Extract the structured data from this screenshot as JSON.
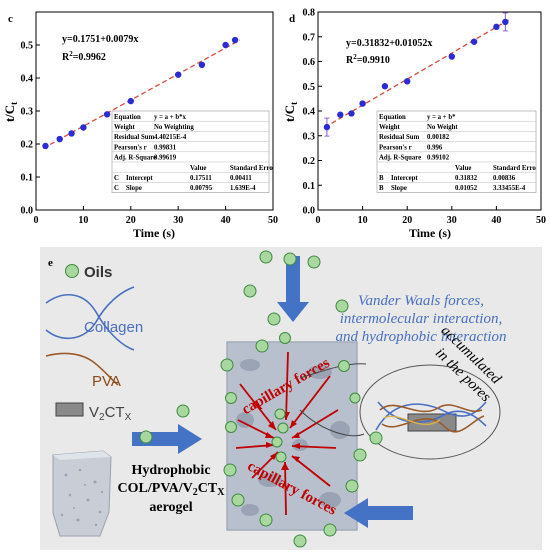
{
  "chart_data": [
    {
      "type": "scatter",
      "panel": "c",
      "title": "",
      "xlabel": "Time (s)",
      "ylabel": "t/Ct",
      "xlim": [
        0,
        50
      ],
      "ylim": [
        0,
        0.6
      ],
      "xticks": [
        "0",
        "10",
        "20",
        "30",
        "40",
        "50"
      ],
      "yticks": [
        "0.0",
        "0.1",
        "0.2",
        "0.3",
        "0.4",
        "0.5"
      ],
      "grid": false,
      "fit_line": {
        "intercept": 0.1751,
        "slope": 0.0079,
        "style": "dashed",
        "color": "#d84b3a"
      },
      "equation": "y=0.1751+0.0079x",
      "r2_prefix": "R",
      "r2_sup": "2",
      "r2_value": "=0.9962",
      "x": [
        2,
        5,
        7.5,
        10,
        15,
        20,
        30,
        35,
        40,
        42
      ],
      "y": [
        0.194,
        0.215,
        0.232,
        0.25,
        0.29,
        0.33,
        0.41,
        0.44,
        0.5,
        0.515
      ],
      "error_bars_on_points": [],
      "marker_color": "#2b2bd4",
      "stats_table": {
        "rows": [
          [
            "Equation",
            "y = a + b*x"
          ],
          [
            "Weight",
            "No Weighting"
          ],
          [
            "Residual Sum",
            "4.40215E-4"
          ],
          [
            "Pearson's r",
            "0.99831"
          ],
          [
            "Adj. R-Square",
            "0.99619"
          ]
        ],
        "coef_header": [
          "",
          "",
          "Value",
          "Standard Erro"
        ],
        "coef_rows": [
          [
            "C",
            "Intercept",
            "0.17511",
            "0.00411"
          ],
          [
            "C",
            "Slope",
            "0.00795",
            "1.639E-4"
          ]
        ]
      }
    },
    {
      "type": "scatter",
      "panel": "d",
      "title": "",
      "xlabel": "Time (s)",
      "ylabel": "t/Ct",
      "xlim": [
        0,
        50
      ],
      "ylim": [
        0,
        0.8
      ],
      "xticks": [
        "0",
        "10",
        "20",
        "30",
        "40",
        "50"
      ],
      "yticks": [
        "0.0",
        "0.1",
        "0.2",
        "0.3",
        "0.4",
        "0.5",
        "0.6",
        "0.7",
        "0.8"
      ],
      "grid": false,
      "fit_line": {
        "intercept": 0.31832,
        "slope": 0.01052,
        "style": "dashed",
        "color": "#d84b3a"
      },
      "equation": "y=0.31832+0.01052x",
      "r2_prefix": "R",
      "r2_sup": "2",
      "r2_value": "=0.9910",
      "x": [
        2,
        5,
        7.5,
        10,
        15,
        20,
        30,
        35,
        40,
        42
      ],
      "y": [
        0.335,
        0.385,
        0.39,
        0.43,
        0.5,
        0.52,
        0.62,
        0.68,
        0.74,
        0.76
      ],
      "error_bars_on_points": [
        0,
        9
      ],
      "marker_color": "#2b2bd4",
      "stats_table": {
        "rows": [
          [
            "Equation",
            "y = a + b*"
          ],
          [
            "Weight",
            "No Weight"
          ],
          [
            "Residual Sum",
            "0.00182"
          ],
          [
            "Pearson's r",
            "0.996"
          ],
          [
            "Adj. R-Square",
            "0.99102"
          ]
        ],
        "coef_header": [
          "",
          "",
          "Value",
          "Standard Erro"
        ],
        "coef_rows": [
          [
            "B",
            "Intercept",
            "0.31832",
            "0.00836"
          ],
          [
            "B",
            "Slope",
            "0.01052",
            "3.33455E-4"
          ]
        ]
      }
    }
  ],
  "panel_e": {
    "label": "e",
    "legend": {
      "oils": "Oils",
      "collagen": "Collagen",
      "pva": "PVA",
      "mxene_main": "V",
      "mxene_sub2": "2",
      "mxene_ct": "CT",
      "mxene_subx": "X"
    },
    "forces_text": [
      "Vander Waals forces,",
      "intermolecular interaction,",
      "and hydrophobic interaction"
    ],
    "capillary_label": "capillary forces",
    "accumulated_text": [
      "accumulated",
      "in the pores"
    ],
    "aerogel_caption": {
      "line1": "Hydrophobic",
      "line2_main": "COL/PVA/V",
      "line2_sub2": "2",
      "line2_ct": "CT",
      "line2_subx": "X",
      "line3": "aerogel"
    },
    "colors": {
      "oil_fill": "#a8d8a0",
      "oil_stroke": "#3f8a3f",
      "collagen": "#4a6fc0",
      "pva": "#9a5a2a",
      "arrow_blue": "#4472c4",
      "arrow_red": "#c00000",
      "forces_text": "#4a6fc0"
    }
  }
}
